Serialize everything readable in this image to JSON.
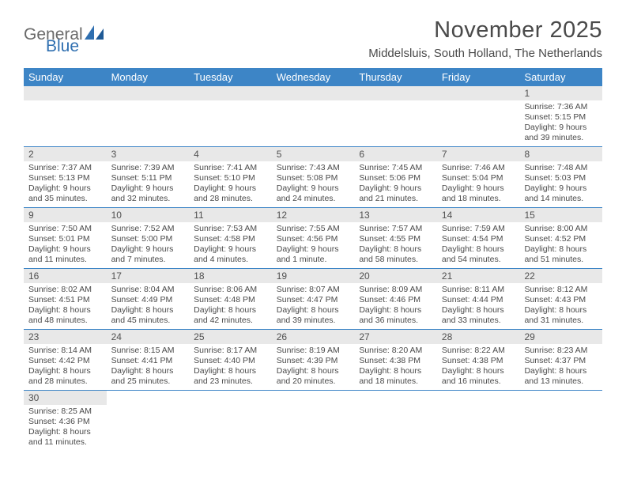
{
  "logo": {
    "text1": "General",
    "text2": "Blue"
  },
  "title": "November 2025",
  "location": "Middelsluis, South Holland, The Netherlands",
  "colors": {
    "header_bar": "#3d85c6",
    "daynum_bg": "#e8e8e8",
    "text": "#4a4a4a",
    "logo_gray": "#6a6a6a",
    "logo_blue": "#2f6fb0",
    "week_divider": "#3d85c6"
  },
  "weekdays": [
    "Sunday",
    "Monday",
    "Tuesday",
    "Wednesday",
    "Thursday",
    "Friday",
    "Saturday"
  ],
  "weeks": [
    [
      {
        "n": "",
        "sunrise": "",
        "sunset": "",
        "dl1": "",
        "dl2": ""
      },
      {
        "n": "",
        "sunrise": "",
        "sunset": "",
        "dl1": "",
        "dl2": ""
      },
      {
        "n": "",
        "sunrise": "",
        "sunset": "",
        "dl1": "",
        "dl2": ""
      },
      {
        "n": "",
        "sunrise": "",
        "sunset": "",
        "dl1": "",
        "dl2": ""
      },
      {
        "n": "",
        "sunrise": "",
        "sunset": "",
        "dl1": "",
        "dl2": ""
      },
      {
        "n": "",
        "sunrise": "",
        "sunset": "",
        "dl1": "",
        "dl2": ""
      },
      {
        "n": "1",
        "sunrise": "Sunrise: 7:36 AM",
        "sunset": "Sunset: 5:15 PM",
        "dl1": "Daylight: 9 hours",
        "dl2": "and 39 minutes."
      }
    ],
    [
      {
        "n": "2",
        "sunrise": "Sunrise: 7:37 AM",
        "sunset": "Sunset: 5:13 PM",
        "dl1": "Daylight: 9 hours",
        "dl2": "and 35 minutes."
      },
      {
        "n": "3",
        "sunrise": "Sunrise: 7:39 AM",
        "sunset": "Sunset: 5:11 PM",
        "dl1": "Daylight: 9 hours",
        "dl2": "and 32 minutes."
      },
      {
        "n": "4",
        "sunrise": "Sunrise: 7:41 AM",
        "sunset": "Sunset: 5:10 PM",
        "dl1": "Daylight: 9 hours",
        "dl2": "and 28 minutes."
      },
      {
        "n": "5",
        "sunrise": "Sunrise: 7:43 AM",
        "sunset": "Sunset: 5:08 PM",
        "dl1": "Daylight: 9 hours",
        "dl2": "and 24 minutes."
      },
      {
        "n": "6",
        "sunrise": "Sunrise: 7:45 AM",
        "sunset": "Sunset: 5:06 PM",
        "dl1": "Daylight: 9 hours",
        "dl2": "and 21 minutes."
      },
      {
        "n": "7",
        "sunrise": "Sunrise: 7:46 AM",
        "sunset": "Sunset: 5:04 PM",
        "dl1": "Daylight: 9 hours",
        "dl2": "and 18 minutes."
      },
      {
        "n": "8",
        "sunrise": "Sunrise: 7:48 AM",
        "sunset": "Sunset: 5:03 PM",
        "dl1": "Daylight: 9 hours",
        "dl2": "and 14 minutes."
      }
    ],
    [
      {
        "n": "9",
        "sunrise": "Sunrise: 7:50 AM",
        "sunset": "Sunset: 5:01 PM",
        "dl1": "Daylight: 9 hours",
        "dl2": "and 11 minutes."
      },
      {
        "n": "10",
        "sunrise": "Sunrise: 7:52 AM",
        "sunset": "Sunset: 5:00 PM",
        "dl1": "Daylight: 9 hours",
        "dl2": "and 7 minutes."
      },
      {
        "n": "11",
        "sunrise": "Sunrise: 7:53 AM",
        "sunset": "Sunset: 4:58 PM",
        "dl1": "Daylight: 9 hours",
        "dl2": "and 4 minutes."
      },
      {
        "n": "12",
        "sunrise": "Sunrise: 7:55 AM",
        "sunset": "Sunset: 4:56 PM",
        "dl1": "Daylight: 9 hours",
        "dl2": "and 1 minute."
      },
      {
        "n": "13",
        "sunrise": "Sunrise: 7:57 AM",
        "sunset": "Sunset: 4:55 PM",
        "dl1": "Daylight: 8 hours",
        "dl2": "and 58 minutes."
      },
      {
        "n": "14",
        "sunrise": "Sunrise: 7:59 AM",
        "sunset": "Sunset: 4:54 PM",
        "dl1": "Daylight: 8 hours",
        "dl2": "and 54 minutes."
      },
      {
        "n": "15",
        "sunrise": "Sunrise: 8:00 AM",
        "sunset": "Sunset: 4:52 PM",
        "dl1": "Daylight: 8 hours",
        "dl2": "and 51 minutes."
      }
    ],
    [
      {
        "n": "16",
        "sunrise": "Sunrise: 8:02 AM",
        "sunset": "Sunset: 4:51 PM",
        "dl1": "Daylight: 8 hours",
        "dl2": "and 48 minutes."
      },
      {
        "n": "17",
        "sunrise": "Sunrise: 8:04 AM",
        "sunset": "Sunset: 4:49 PM",
        "dl1": "Daylight: 8 hours",
        "dl2": "and 45 minutes."
      },
      {
        "n": "18",
        "sunrise": "Sunrise: 8:06 AM",
        "sunset": "Sunset: 4:48 PM",
        "dl1": "Daylight: 8 hours",
        "dl2": "and 42 minutes."
      },
      {
        "n": "19",
        "sunrise": "Sunrise: 8:07 AM",
        "sunset": "Sunset: 4:47 PM",
        "dl1": "Daylight: 8 hours",
        "dl2": "and 39 minutes."
      },
      {
        "n": "20",
        "sunrise": "Sunrise: 8:09 AM",
        "sunset": "Sunset: 4:46 PM",
        "dl1": "Daylight: 8 hours",
        "dl2": "and 36 minutes."
      },
      {
        "n": "21",
        "sunrise": "Sunrise: 8:11 AM",
        "sunset": "Sunset: 4:44 PM",
        "dl1": "Daylight: 8 hours",
        "dl2": "and 33 minutes."
      },
      {
        "n": "22",
        "sunrise": "Sunrise: 8:12 AM",
        "sunset": "Sunset: 4:43 PM",
        "dl1": "Daylight: 8 hours",
        "dl2": "and 31 minutes."
      }
    ],
    [
      {
        "n": "23",
        "sunrise": "Sunrise: 8:14 AM",
        "sunset": "Sunset: 4:42 PM",
        "dl1": "Daylight: 8 hours",
        "dl2": "and 28 minutes."
      },
      {
        "n": "24",
        "sunrise": "Sunrise: 8:15 AM",
        "sunset": "Sunset: 4:41 PM",
        "dl1": "Daylight: 8 hours",
        "dl2": "and 25 minutes."
      },
      {
        "n": "25",
        "sunrise": "Sunrise: 8:17 AM",
        "sunset": "Sunset: 4:40 PM",
        "dl1": "Daylight: 8 hours",
        "dl2": "and 23 minutes."
      },
      {
        "n": "26",
        "sunrise": "Sunrise: 8:19 AM",
        "sunset": "Sunset: 4:39 PM",
        "dl1": "Daylight: 8 hours",
        "dl2": "and 20 minutes."
      },
      {
        "n": "27",
        "sunrise": "Sunrise: 8:20 AM",
        "sunset": "Sunset: 4:38 PM",
        "dl1": "Daylight: 8 hours",
        "dl2": "and 18 minutes."
      },
      {
        "n": "28",
        "sunrise": "Sunrise: 8:22 AM",
        "sunset": "Sunset: 4:38 PM",
        "dl1": "Daylight: 8 hours",
        "dl2": "and 16 minutes."
      },
      {
        "n": "29",
        "sunrise": "Sunrise: 8:23 AM",
        "sunset": "Sunset: 4:37 PM",
        "dl1": "Daylight: 8 hours",
        "dl2": "and 13 minutes."
      }
    ],
    [
      {
        "n": "30",
        "sunrise": "Sunrise: 8:25 AM",
        "sunset": "Sunset: 4:36 PM",
        "dl1": "Daylight: 8 hours",
        "dl2": "and 11 minutes."
      },
      {
        "n": "",
        "sunrise": "",
        "sunset": "",
        "dl1": "",
        "dl2": ""
      },
      {
        "n": "",
        "sunrise": "",
        "sunset": "",
        "dl1": "",
        "dl2": ""
      },
      {
        "n": "",
        "sunrise": "",
        "sunset": "",
        "dl1": "",
        "dl2": ""
      },
      {
        "n": "",
        "sunrise": "",
        "sunset": "",
        "dl1": "",
        "dl2": ""
      },
      {
        "n": "",
        "sunrise": "",
        "sunset": "",
        "dl1": "",
        "dl2": ""
      },
      {
        "n": "",
        "sunrise": "",
        "sunset": "",
        "dl1": "",
        "dl2": ""
      }
    ]
  ]
}
